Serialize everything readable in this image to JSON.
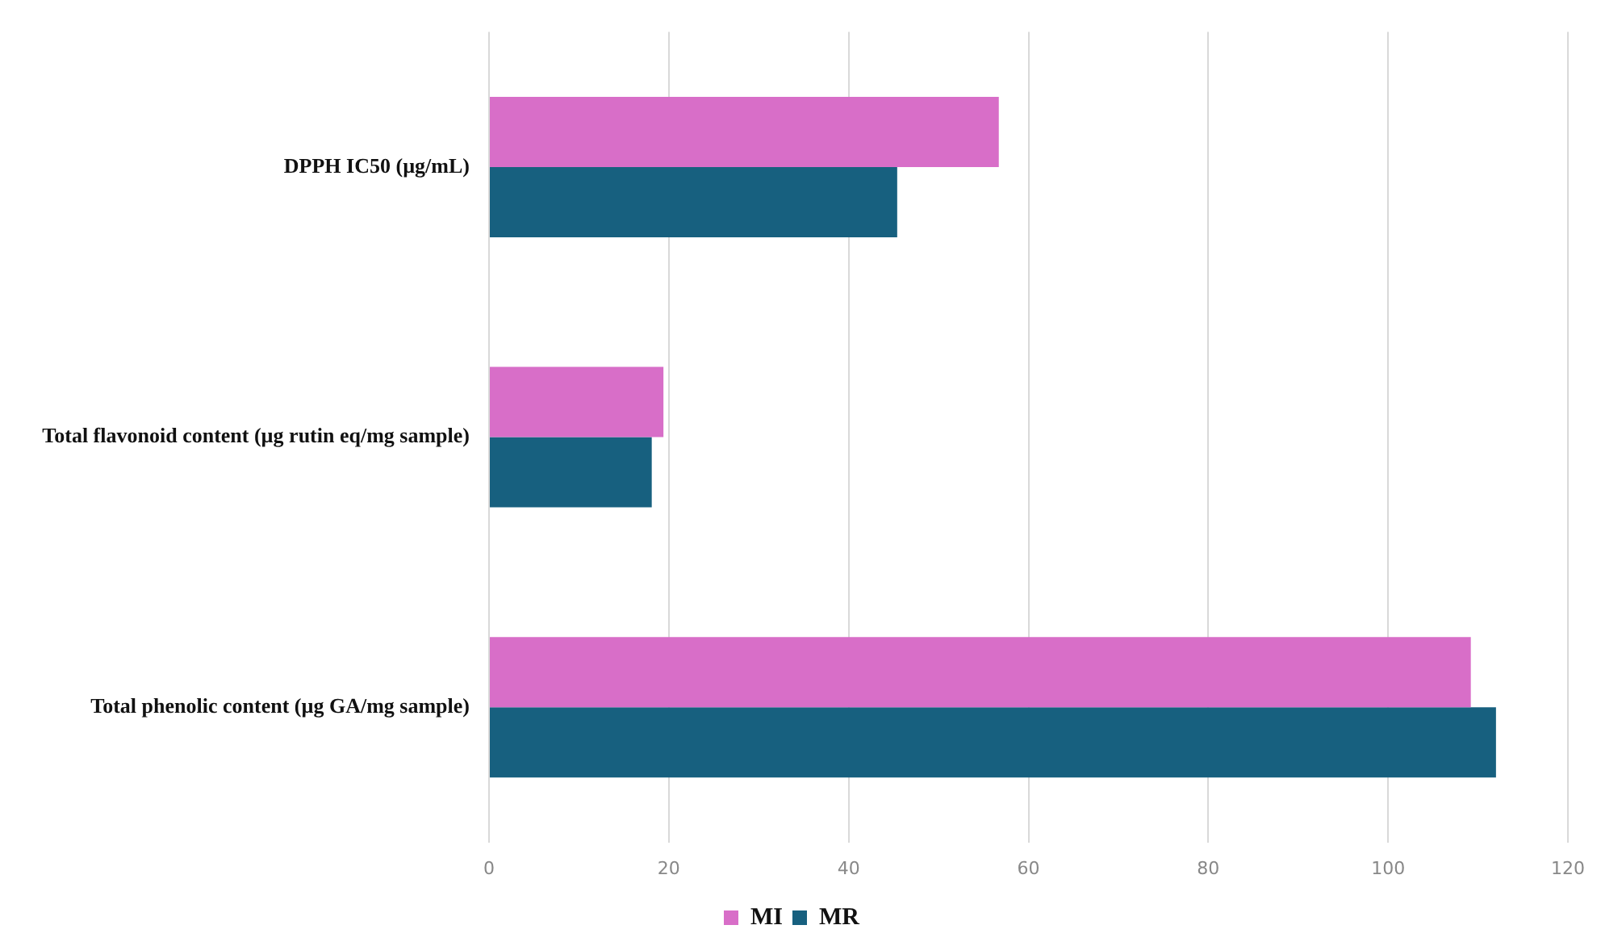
{
  "chart_data": {
    "type": "bar",
    "orientation": "horizontal",
    "categories": [
      "DPPH IC50 (µg/mL)",
      "Total flavonoid content (µg rutin eq/mg sample)",
      "Total phenolic content (µg GA/mg sample)"
    ],
    "series": [
      {
        "name": "MI",
        "color": "#d86ec8",
        "values": [
          56.7,
          19.4,
          109.2
        ]
      },
      {
        "name": "MR",
        "color": "#17607f",
        "values": [
          45.4,
          18.1,
          112.0
        ]
      }
    ],
    "xlim": [
      0,
      120
    ],
    "xticks": [
      0,
      20,
      40,
      60,
      80,
      100,
      120
    ],
    "grid": "x",
    "legend": "bottom"
  }
}
